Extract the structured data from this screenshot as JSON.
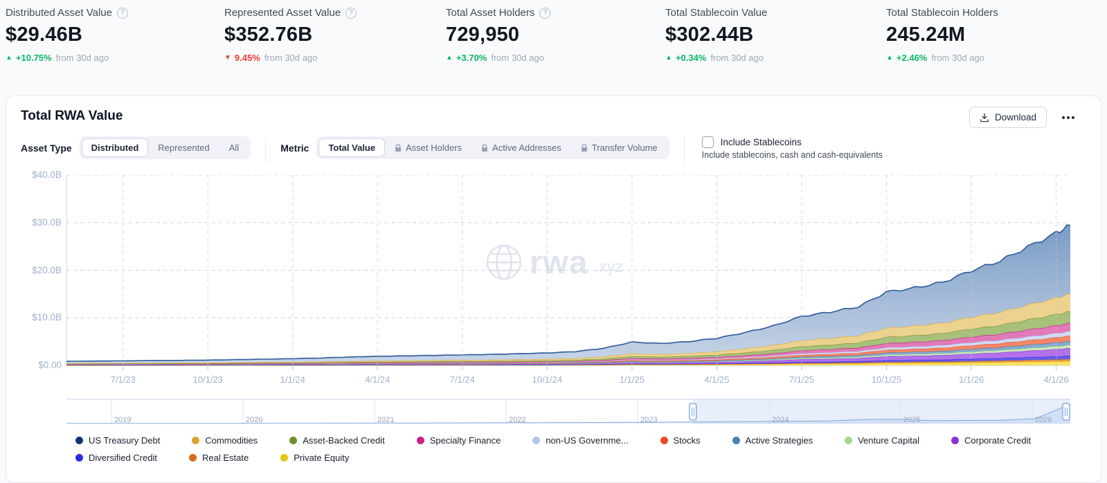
{
  "stats": [
    {
      "label": "Distributed Asset Value",
      "has_help": true,
      "value": "$29.46B",
      "direction": "up",
      "delta_icon": "▲",
      "delta": "+10.75%",
      "suffix": "from 30d ago"
    },
    {
      "label": "Represented Asset Value",
      "has_help": true,
      "value": "$352.76B",
      "direction": "down",
      "delta_icon": "▼",
      "delta": "9.45%",
      "suffix": "from 30d ago"
    },
    {
      "label": "Total Asset Holders",
      "has_help": true,
      "value": "729,950",
      "direction": "up",
      "delta_icon": "▲",
      "delta": "+3.70%",
      "suffix": "from 30d ago"
    },
    {
      "label": "Total Stablecoin Value",
      "has_help": false,
      "value": "$302.44B",
      "direction": "up",
      "delta_icon": "▲",
      "delta": "+0.34%",
      "suffix": "from 30d ago"
    },
    {
      "label": "Total Stablecoin Holders",
      "has_help": false,
      "value": "245.24M",
      "direction": "up",
      "delta_icon": "▲",
      "delta": "+2.46%",
      "suffix": "from 30d ago"
    }
  ],
  "card": {
    "title": "Total RWA Value",
    "download_label": "Download",
    "watermark_text": "rwa",
    "watermark_suffix": ".xyz",
    "filters": {
      "asset_type_label": "Asset Type",
      "asset_type_options": [
        {
          "label": "Distributed",
          "selected": true,
          "locked": false
        },
        {
          "label": "Represented",
          "selected": false,
          "locked": false
        },
        {
          "label": "All",
          "selected": false,
          "locked": false
        }
      ],
      "metric_label": "Metric",
      "metric_options": [
        {
          "label": "Total Value",
          "selected": true,
          "locked": false
        },
        {
          "label": "Asset Holders",
          "selected": false,
          "locked": true
        },
        {
          "label": "Active Addresses",
          "selected": false,
          "locked": true
        },
        {
          "label": "Transfer Volume",
          "selected": false,
          "locked": true
        }
      ],
      "include_stablecoins": {
        "label": "Include Stablecoins",
        "description": "Include stablecoins, cash and cash-equivalents",
        "checked": false
      }
    }
  },
  "chart_data": {
    "type": "area",
    "stacked": true,
    "title": "Total RWA Value",
    "ylim": [
      0,
      40
    ],
    "grid": "dashed",
    "y_ticks": [
      {
        "value": 0,
        "label": "$0.00"
      },
      {
        "value": 10,
        "label": "$10.0B"
      },
      {
        "value": 20,
        "label": "$20.0B"
      },
      {
        "value": 30,
        "label": "$30.0B"
      },
      {
        "value": 40,
        "label": "$40.0B"
      }
    ],
    "x_ticks": [
      {
        "month": 2,
        "label": "7/1/23"
      },
      {
        "month": 5,
        "label": "10/1/23"
      },
      {
        "month": 8,
        "label": "1/1/24"
      },
      {
        "month": 11,
        "label": "4/1/24"
      },
      {
        "month": 14,
        "label": "7/1/24"
      },
      {
        "month": 17,
        "label": "10/1/24"
      },
      {
        "month": 20,
        "label": "1/1/25"
      },
      {
        "month": 23,
        "label": "4/1/25"
      },
      {
        "month": 26,
        "label": "7/1/25"
      },
      {
        "month": 29,
        "label": "10/1/25"
      },
      {
        "month": 32,
        "label": "1/1/26"
      },
      {
        "month": 35,
        "label": "4/1/26"
      }
    ],
    "x_domain_months": [
      0,
      35.5
    ],
    "months": [
      0,
      1,
      2,
      3,
      4,
      5,
      6,
      7,
      8,
      9,
      10,
      11,
      12,
      13,
      14,
      15,
      16,
      17,
      18,
      19,
      20,
      21,
      22,
      23,
      24,
      25,
      26,
      27,
      28,
      29,
      30,
      31,
      32,
      33,
      34,
      35,
      35.5
    ],
    "total_usd_b": [
      0.85,
      0.9,
      0.95,
      1.0,
      1.05,
      1.1,
      1.2,
      1.3,
      1.4,
      1.55,
      1.75,
      1.9,
      2.0,
      2.1,
      2.2,
      2.3,
      2.45,
      2.6,
      2.9,
      3.6,
      4.9,
      4.6,
      5.0,
      5.7,
      6.9,
      8.3,
      10.3,
      11.2,
      12.3,
      15.4,
      16.3,
      17.5,
      19.9,
      21.9,
      24.9,
      27.8,
      29.46
    ],
    "final_total_label": "$29.46B",
    "series_bottom_to_top": [
      {
        "name": "Private Equity",
        "fraction": 0.03,
        "color": "#e8c513",
        "fill": "#fbe14e"
      },
      {
        "name": "Real Estate",
        "fraction": 0.015,
        "color": "#d96a1d",
        "fill": "#e68a45"
      },
      {
        "name": "Diversified Credit",
        "fraction": 0.022,
        "color": "#2b2bdf",
        "fill": "#5050ec"
      },
      {
        "name": "Corporate Credit",
        "fraction": 0.055,
        "color": "#8b2fd9",
        "fill": "#a863e8"
      },
      {
        "name": "Venture Capital",
        "fraction": 0.022,
        "color": "#a8d590",
        "fill": "#c6e5b4"
      },
      {
        "name": "Active Strategies",
        "fraction": 0.028,
        "color": "#4680b4",
        "fill": "#7aa3cc"
      },
      {
        "name": "Stocks",
        "fraction": 0.038,
        "color": "#ee4723",
        "fill": "#f47a55"
      },
      {
        "name": "non-US Government Debt",
        "fraction": 0.032,
        "color": "#b4c3e8",
        "fill": "#ccd7f0"
      },
      {
        "name": "Specialty Finance",
        "fraction": 0.058,
        "color": "#ca2089",
        "fill": "#df6cb3"
      },
      {
        "name": "Asset-Backed Credit",
        "fraction": 0.085,
        "color": "#6f8f2d",
        "fill": "#9db96e"
      },
      {
        "name": "Commodities",
        "fraction": 0.125,
        "color": "#daa32c",
        "fill": "#eacd83"
      },
      {
        "name": "US Treasury Debt",
        "fraction": 0.49,
        "color": "#2b5a9b",
        "fill": "gradient",
        "fill_top": "#6e93c0",
        "fill_bottom": "#c9d6e8"
      }
    ],
    "legend": [
      {
        "label": "US Treasury Debt",
        "color": "#16356e"
      },
      {
        "label": "Commodities",
        "color": "#daa32c"
      },
      {
        "label": "Asset-Backed Credit",
        "color": "#6f8f2d"
      },
      {
        "label": "Specialty Finance",
        "color": "#ca2089"
      },
      {
        "label": "non-US Governme...",
        "color": "#b4c3e8"
      },
      {
        "label": "Stocks",
        "color": "#ee4723"
      },
      {
        "label": "Active Strategies",
        "color": "#4680b4"
      },
      {
        "label": "Venture Capital",
        "color": "#a8d590"
      },
      {
        "label": "Corporate Credit",
        "color": "#8b2fd9"
      },
      {
        "label": "Diversified Credit",
        "color": "#2b2bdf"
      },
      {
        "label": "Real Estate",
        "color": "#d96a1d"
      },
      {
        "label": "Private Equity",
        "color": "#e8c513"
      }
    ],
    "navigator": {
      "years": [
        "2019",
        "2020",
        "2021",
        "2022",
        "2023",
        "2024",
        "2025",
        "2026"
      ],
      "values": [
        0.005,
        0.005,
        0.006,
        0.007,
        0.008,
        0.01,
        0.012,
        0.014,
        0.016,
        0.018,
        0.02,
        0.025,
        0.03,
        0.035,
        0.04,
        0.045,
        0.05,
        0.06,
        0.07,
        0.08,
        0.09,
        0.1,
        0.12,
        0.18,
        0.19,
        0.13,
        0.14,
        0.15,
        0.22,
        0.88
      ],
      "selection_start_frac": 0.624,
      "selection_end_frac": 1.0
    }
  }
}
